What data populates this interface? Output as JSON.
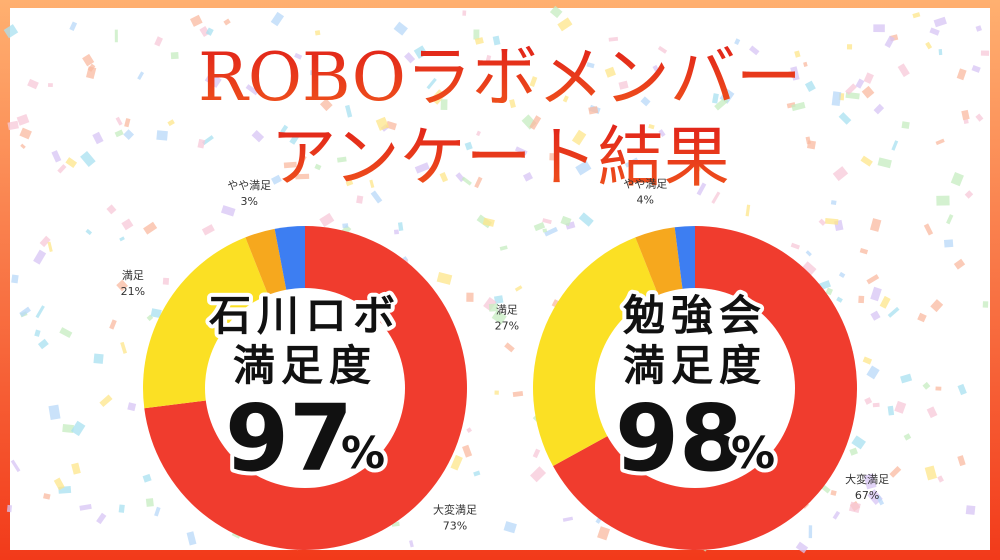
{
  "title": [
    "ROBOラボメンバー",
    "アンケート結果"
  ],
  "chart_data": [
    {
      "type": "pie",
      "center_lines": [
        "石川ロボ",
        "満足度"
      ],
      "center_value": "97",
      "center_unit": "%",
      "categories": [
        "大変満足",
        "満足",
        "やや満足",
        null
      ],
      "values": [
        73,
        21,
        3,
        3
      ],
      "value_labels": [
        "73%",
        "21%",
        "3%",
        null
      ],
      "colors": [
        "#f03c2e",
        "#fbe024",
        "#f6a81e",
        "#3d7ef2"
      ]
    },
    {
      "type": "pie",
      "center_lines": [
        "勉強会",
        "満足度"
      ],
      "center_value": "98",
      "center_unit": "%",
      "categories": [
        "大変満足",
        "満足",
        "やや満足",
        null
      ],
      "values": [
        67,
        27,
        4,
        2
      ],
      "value_labels": [
        "67%",
        "27%",
        "4%",
        null
      ],
      "colors": [
        "#f03c2e",
        "#fbe024",
        "#f6a81e",
        "#3d7ef2"
      ]
    }
  ]
}
